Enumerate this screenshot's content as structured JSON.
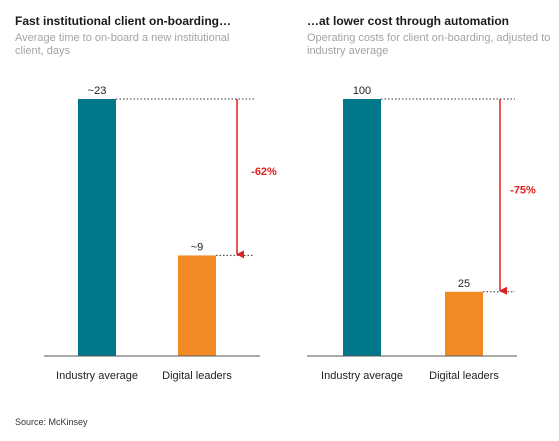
{
  "charts": [
    {
      "title": "Fast institutional client on-boarding…",
      "subtitle_line1": "Average time to on-board a new institutional",
      "subtitle_line2": "client, days"
    },
    {
      "title": "…at lower cost through automation",
      "subtitle_line1": "Operating costs for client on-boarding, adjusted to",
      "subtitle_line2": "industry average"
    }
  ],
  "source": "Source: McKinsey",
  "colors": {
    "industry": "#00788a",
    "digital": "#f28a24",
    "arrow": "#e02020",
    "axis": "#555555"
  },
  "chart_data": [
    {
      "type": "bar",
      "title": "Fast institutional client on-boarding…",
      "categories": [
        "Industry average",
        "Digital leaders"
      ],
      "values": [
        23,
        9
      ],
      "data_labels": [
        "~23",
        "~9"
      ],
      "annotation": "-62%",
      "ylim": [
        0,
        23
      ]
    },
    {
      "type": "bar",
      "title": "…at lower cost through automation",
      "categories": [
        "Industry average",
        "Digital leaders"
      ],
      "values": [
        100,
        25
      ],
      "data_labels": [
        "100",
        "25"
      ],
      "annotation": "-75%",
      "ylim": [
        0,
        100
      ]
    }
  ]
}
